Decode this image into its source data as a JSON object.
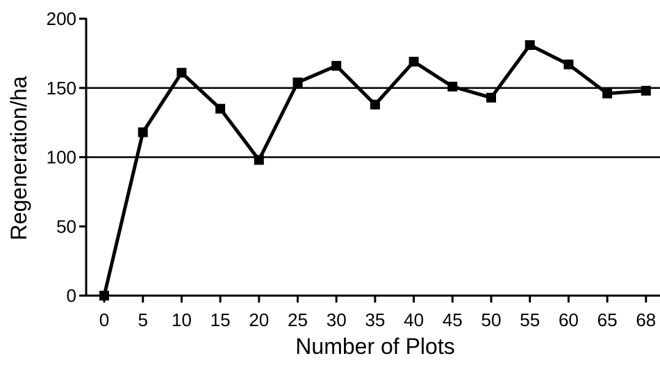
{
  "chart_data": {
    "type": "line",
    "title": "",
    "xlabel": "Number of Plots",
    "ylabel": "Regeneration/ha",
    "categories": [
      "0",
      "5",
      "10",
      "15",
      "20",
      "25",
      "30",
      "35",
      "40",
      "45",
      "50",
      "55",
      "60",
      "65",
      "68"
    ],
    "series": [
      {
        "values": [
          0,
          118,
          161,
          135,
          98,
          154,
          166,
          138,
          169,
          151,
          143,
          181,
          167,
          146,
          148
        ]
      }
    ],
    "ylim": [
      0,
      200
    ],
    "yticks": [
      "0",
      "50",
      "100",
      "150",
      "200"
    ],
    "reference_lines": [
      100,
      150
    ],
    "grid": false,
    "legend": "none",
    "colors": {
      "line": "#000000",
      "background": "#ffffff"
    }
  }
}
